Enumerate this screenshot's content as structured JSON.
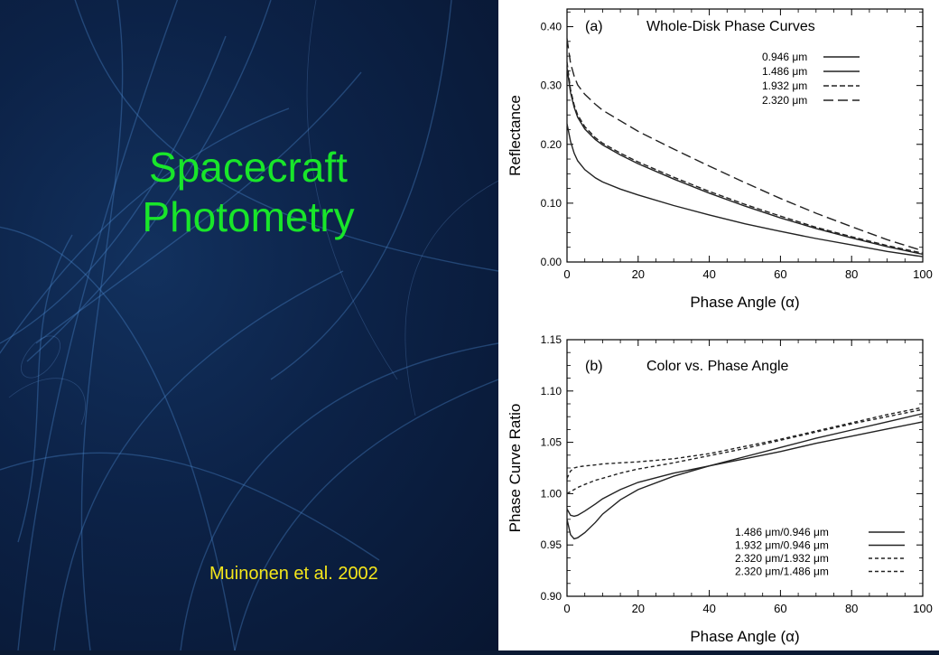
{
  "slide": {
    "title_line1": "Spacecraft",
    "title_line2": "Photometry",
    "citation": "Muinonen et al. 2002",
    "title_color": "#19e62a",
    "citation_color": "#f4e61b"
  },
  "chart_data": [
    {
      "type": "line",
      "panel_label": "(a)",
      "title": "Whole-Disk Phase Curves",
      "xlabel": "Phase Angle (α)",
      "ylabel": "Reflectance",
      "xlim": [
        0,
        100
      ],
      "ylim": [
        0,
        0.43
      ],
      "xticks": [
        0,
        20,
        40,
        60,
        80,
        100
      ],
      "yticks": [
        0.0,
        0.1,
        0.2,
        0.3,
        0.4
      ],
      "ytick_labels": [
        "0.00",
        "0.10",
        "0.20",
        "0.30",
        "0.40"
      ],
      "legend_position": "top-right",
      "series": [
        {
          "name": "0.946 μm",
          "dash": "solid",
          "x": [
            0,
            1,
            2,
            3,
            5,
            8,
            10,
            15,
            20,
            30,
            40,
            50,
            60,
            70,
            80,
            90,
            100
          ],
          "y": [
            0.235,
            0.205,
            0.185,
            0.172,
            0.157,
            0.143,
            0.136,
            0.124,
            0.114,
            0.096,
            0.08,
            0.065,
            0.052,
            0.04,
            0.029,
            0.018,
            0.009
          ]
        },
        {
          "name": "1.486 μm",
          "dash": "solid",
          "x": [
            0,
            1,
            2,
            3,
            5,
            8,
            10,
            15,
            20,
            30,
            40,
            50,
            60,
            70,
            80,
            90,
            100
          ],
          "y": [
            0.33,
            0.288,
            0.263,
            0.246,
            0.226,
            0.208,
            0.199,
            0.182,
            0.167,
            0.141,
            0.117,
            0.095,
            0.075,
            0.057,
            0.041,
            0.026,
            0.013
          ]
        },
        {
          "name": "1.932 μm",
          "dash": "dashed",
          "x": [
            0,
            1,
            2,
            3,
            5,
            8,
            10,
            15,
            20,
            30,
            40,
            50,
            60,
            70,
            80,
            90,
            100
          ],
          "y": [
            0.34,
            0.293,
            0.267,
            0.25,
            0.23,
            0.211,
            0.202,
            0.185,
            0.17,
            0.144,
            0.12,
            0.098,
            0.078,
            0.059,
            0.043,
            0.028,
            0.015
          ]
        },
        {
          "name": "2.320 μm",
          "dash": "long-dashed",
          "x": [
            0,
            1,
            2,
            3,
            5,
            8,
            10,
            15,
            20,
            30,
            40,
            50,
            60,
            70,
            80,
            90,
            100
          ],
          "y": [
            0.38,
            0.338,
            0.316,
            0.301,
            0.285,
            0.268,
            0.258,
            0.24,
            0.222,
            0.192,
            0.163,
            0.135,
            0.108,
            0.083,
            0.06,
            0.038,
            0.019
          ]
        }
      ]
    },
    {
      "type": "line",
      "panel_label": "(b)",
      "title": "Color vs. Phase Angle",
      "xlabel": "Phase Angle (α)",
      "ylabel": "Phase Curve Ratio",
      "xlim": [
        0,
        100
      ],
      "ylim": [
        0.9,
        1.15
      ],
      "xticks": [
        0,
        20,
        40,
        60,
        80,
        100
      ],
      "yticks": [
        0.9,
        0.95,
        1.0,
        1.05,
        1.1,
        1.15
      ],
      "ytick_labels": [
        "0.90",
        "0.95",
        "1.00",
        "1.05",
        "1.10",
        "1.15"
      ],
      "legend_position": "bottom-right",
      "series": [
        {
          "name": "1.486 μm/0.946 μm",
          "dash": "solid",
          "x": [
            0,
            1,
            2,
            3,
            5,
            8,
            10,
            15,
            20,
            30,
            40,
            50,
            60,
            70,
            80,
            90,
            100
          ],
          "y": [
            0.985,
            0.979,
            0.978,
            0.979,
            0.983,
            0.99,
            0.995,
            1.004,
            1.011,
            1.02,
            1.027,
            1.034,
            1.041,
            1.049,
            1.056,
            1.063,
            1.07
          ]
        },
        {
          "name": "1.932 μm/0.946 μm",
          "dash": "solid",
          "x": [
            0,
            1,
            2,
            3,
            5,
            8,
            10,
            15,
            20,
            30,
            40,
            50,
            60,
            70,
            80,
            90,
            100
          ],
          "y": [
            0.975,
            0.96,
            0.956,
            0.957,
            0.962,
            0.972,
            0.98,
            0.994,
            1.004,
            1.017,
            1.027,
            1.036,
            1.045,
            1.054,
            1.062,
            1.07,
            1.078
          ]
        },
        {
          "name": "2.320 μm/1.932 μm",
          "dash": "short-dashed",
          "x": [
            0,
            1,
            2,
            3,
            5,
            8,
            10,
            15,
            20,
            30,
            40,
            50,
            60,
            70,
            80,
            90,
            100
          ],
          "y": [
            1.015,
            1.022,
            1.025,
            1.026,
            1.027,
            1.028,
            1.029,
            1.03,
            1.031,
            1.034,
            1.039,
            1.046,
            1.053,
            1.061,
            1.069,
            1.077,
            1.084
          ]
        },
        {
          "name": "2.320 μm/1.486 μm",
          "dash": "short-dashed",
          "x": [
            0,
            1,
            2,
            3,
            5,
            8,
            10,
            15,
            20,
            30,
            40,
            50,
            60,
            70,
            80,
            90,
            100
          ],
          "y": [
            1.0,
            1.002,
            1.004,
            1.006,
            1.009,
            1.013,
            1.015,
            1.02,
            1.024,
            1.03,
            1.037,
            1.044,
            1.052,
            1.06,
            1.068,
            1.075,
            1.082
          ]
        }
      ]
    }
  ]
}
